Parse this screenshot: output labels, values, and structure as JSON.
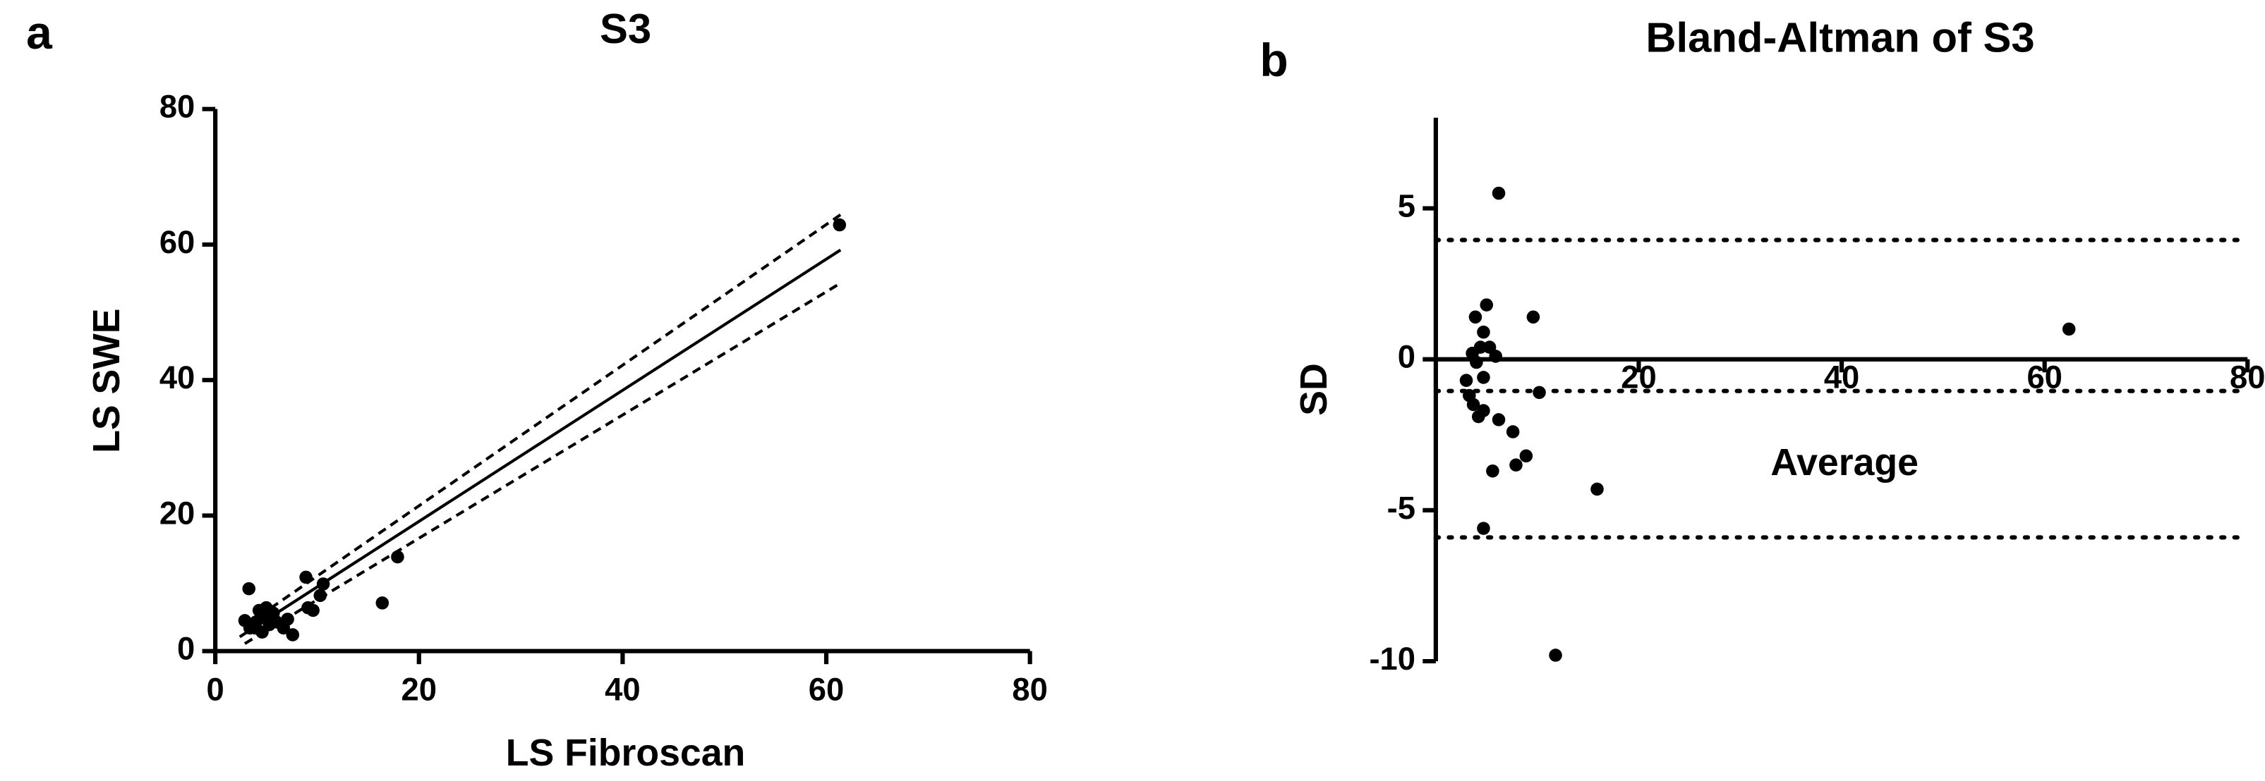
{
  "chart_data": [
    {
      "type": "scatter",
      "panel": "a",
      "title": "S3",
      "x_label": "LS Fibroscan",
      "y_label": "LS SWE",
      "xlim": [
        0,
        80
      ],
      "ylim": [
        0,
        80
      ],
      "xticks": [
        0,
        20,
        40,
        60,
        80
      ],
      "yticks": [
        0,
        20,
        40,
        60,
        80
      ],
      "color": "#000000",
      "x": [
        3.3,
        2.9,
        3.9,
        4.3,
        4.9,
        5.3,
        5.7,
        4.6,
        6.0,
        6.7,
        7.1,
        7.6,
        8.9,
        9.1,
        9.6,
        10.3,
        10.6,
        16.4,
        17.9,
        61.3,
        3.4,
        5.0,
        4.0
      ],
      "y": [
        9.2,
        4.5,
        3.4,
        6.0,
        4.9,
        3.9,
        5.6,
        2.8,
        4.3,
        3.4,
        4.7,
        2.4,
        10.9,
        6.4,
        6.0,
        8.2,
        9.9,
        7.1,
        13.9,
        62.9,
        3.4,
        6.4,
        4.3
      ],
      "lines": [
        {
          "style": "solid",
          "x": [
            2.4,
            61.4
          ],
          "y": [
            2.1,
            59.2
          ]
        },
        {
          "style": "dashed",
          "x": [
            3.1,
            61.4
          ],
          "y": [
            3.9,
            64.4
          ]
        },
        {
          "style": "dashed",
          "x": [
            2.9,
            61.4
          ],
          "y": [
            1.1,
            54.3
          ]
        }
      ]
    },
    {
      "type": "scatter",
      "panel": "b",
      "title": "Bland-Altman of S3",
      "x_label": "Average",
      "y_label": "SD",
      "xlim": [
        0,
        80
      ],
      "ylim": [
        -10,
        8
      ],
      "xticks": [
        20,
        40,
        60,
        80
      ],
      "yticks": [
        -10,
        -5,
        0,
        5
      ],
      "color": "#000000",
      "x": [
        6.2,
        5.0,
        9.6,
        3.9,
        4.7,
        62.4,
        4.4,
        5.3,
        3.6,
        5.9,
        4.0,
        4.7,
        3.0,
        10.2,
        3.3,
        3.7,
        4.7,
        4.2,
        6.2,
        7.6,
        8.9,
        7.9,
        5.6,
        15.9,
        4.7,
        11.8
      ],
      "y": [
        5.5,
        1.8,
        1.4,
        1.4,
        0.9,
        1.0,
        0.4,
        0.4,
        0.2,
        0.1,
        -0.1,
        -0.6,
        -0.7,
        -1.1,
        -1.2,
        -1.5,
        -1.7,
        -1.9,
        -2.0,
        -2.4,
        -3.2,
        -3.5,
        -3.7,
        -4.3,
        -5.6,
        -9.8
      ],
      "hlines": [
        3.95,
        -1.05,
        -5.9
      ]
    }
  ]
}
